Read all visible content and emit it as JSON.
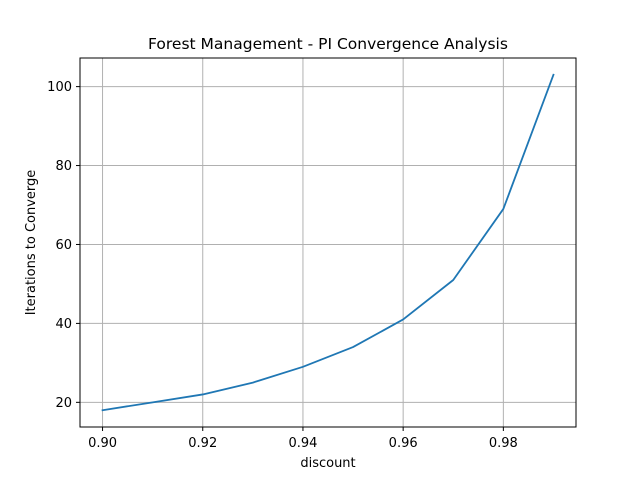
{
  "chart_data": {
    "type": "line",
    "title": "Forest Management - PI Convergence Analysis",
    "xlabel": "discount",
    "ylabel": "Iterations to Converge",
    "x": [
      0.9,
      0.91,
      0.92,
      0.93,
      0.94,
      0.95,
      0.96,
      0.97,
      0.98,
      0.99
    ],
    "series": [
      {
        "values": [
          18,
          20,
          22,
          25,
          29,
          34,
          41,
          51,
          69,
          103
        ],
        "color": "#1f77b4"
      }
    ],
    "xlim": [
      0.8955,
      0.9945
    ],
    "ylim": [
      13.75,
      107.25
    ],
    "x_ticks": [
      0.9,
      0.92,
      0.94,
      0.96,
      0.98
    ],
    "x_tick_labels": [
      "0.90",
      "0.92",
      "0.94",
      "0.96",
      "0.98"
    ],
    "y_ticks": [
      20,
      40,
      60,
      80,
      100
    ],
    "y_tick_labels": [
      "20",
      "40",
      "60",
      "80",
      "100"
    ],
    "grid": true,
    "legend": false
  }
}
